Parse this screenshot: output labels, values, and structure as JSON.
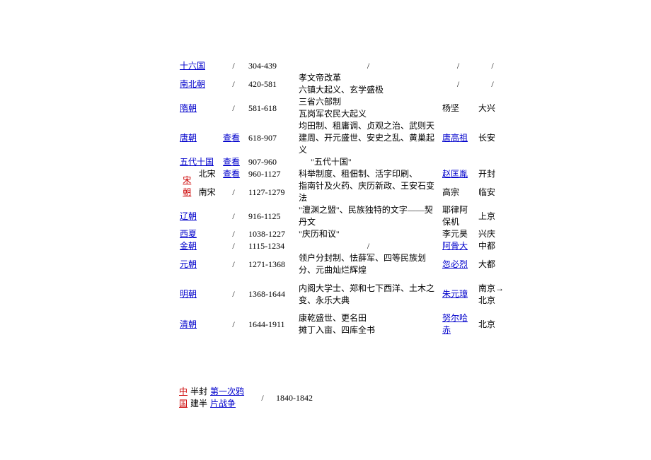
{
  "rows": [
    {
      "dynasty": "十六国",
      "dynastyLink": true,
      "view": "/",
      "years": "304-439",
      "events": "/",
      "eventsCenter": true,
      "founder": "/",
      "founderSlash": true,
      "capital": "/",
      "height": 1
    },
    {
      "dynasty": "南北朝",
      "dynastyLink": true,
      "view": "/",
      "years": "420-581",
      "events": "孝文帝改革\n六镇大起义、玄学盛极",
      "founder": "/",
      "founderSlash": true,
      "capital": "/",
      "height": 2
    },
    {
      "dynasty": "隋朝",
      "dynastyLink": true,
      "view": "/",
      "years": "581-618",
      "events": "三省六部制\n瓦岗军农民大起义",
      "founder": "杨坚",
      "capital": "大兴",
      "height": 2
    },
    {
      "dynasty": "唐朝",
      "dynastyLink": true,
      "view": "查看",
      "viewLink": true,
      "years": "618-907",
      "events": "均田制、租庸调、贞观之治、武则天建周、开元盛世、安史之乱、黄巢起义",
      "founder": "唐高祖",
      "founderLink": true,
      "capital": "长安",
      "height": 3
    },
    {
      "dynasty": "五代十国",
      "dynastyLink": true,
      "view": "查看",
      "viewLink": true,
      "years": "907-960",
      "events": "\"五代十国\"",
      "eventsPad": true,
      "founder": "",
      "capital": "",
      "height": 1
    },
    {
      "dynasty": "北宋",
      "subLeft": "宋朝",
      "subLeftRed": true,
      "view": "查看",
      "viewLink": true,
      "years": "960-1127",
      "events": "科举制度、租佃制、活字印刷、",
      "founder": "赵匡胤",
      "founderLink": true,
      "capital": "开封",
      "height": 1,
      "songTop": true
    },
    {
      "dynasty": "南宋",
      "view": "/",
      "years": "1127-1279",
      "events": "指南针及火药、庆历新政、王安石变法",
      "founder": "高宗",
      "capital": "临安",
      "height": 2,
      "songBottom": true
    },
    {
      "dynasty": "辽朝",
      "dynastyLink": true,
      "view": "/",
      "years": "916-1125",
      "events": "\"澶渊之盟\"、民族独特的文字——契丹文",
      "founder": "耶律阿保机",
      "capital": "上京",
      "height": 2
    },
    {
      "dynasty": "西夏",
      "dynastyLink": true,
      "view": "/",
      "years": "1038-1227",
      "events": "\"庆历和议\"",
      "founder": "李元昊",
      "capital": "兴庆",
      "height": 1
    },
    {
      "dynasty": "金朝",
      "dynastyLink": true,
      "view": "/",
      "years": "1115-1234",
      "events": "/",
      "eventsCenter": true,
      "founder": "阿骨大",
      "founderLink": true,
      "capital": "中都",
      "height": 1
    },
    {
      "dynasty": "元朝",
      "dynastyLink": true,
      "view": "/",
      "years": "1271-1368",
      "events": "领户分封制、怯薛军、四等民族划分、元曲灿烂辉煌",
      "founder": "忽必烈",
      "founderLink": true,
      "capital": "大都",
      "height": 2
    },
    {
      "dynasty": "明朝",
      "dynastyLink": true,
      "view": "/",
      "years": "1368-1644",
      "events": "内阁大学士、郑和七下西洋、土木之变、永乐大典",
      "founder": "朱元璋",
      "founderLink": true,
      "capital": "南京→北京",
      "height": 3
    },
    {
      "dynasty": "清朝",
      "dynastyLink": true,
      "view": "/",
      "years": "1644-1911",
      "events": "康乾盛世、更名田\n摊丁入亩、四库全书",
      "founder": "努尔哈赤",
      "founderLink": true,
      "capital": "北京",
      "height": 2
    }
  ],
  "bottom": {
    "col1a": "中",
    "col1b": "国",
    "col2a": "半封",
    "col2b": "建半",
    "col3": "第一次鸦片战争",
    "view": "/",
    "years": "1840-1842"
  }
}
